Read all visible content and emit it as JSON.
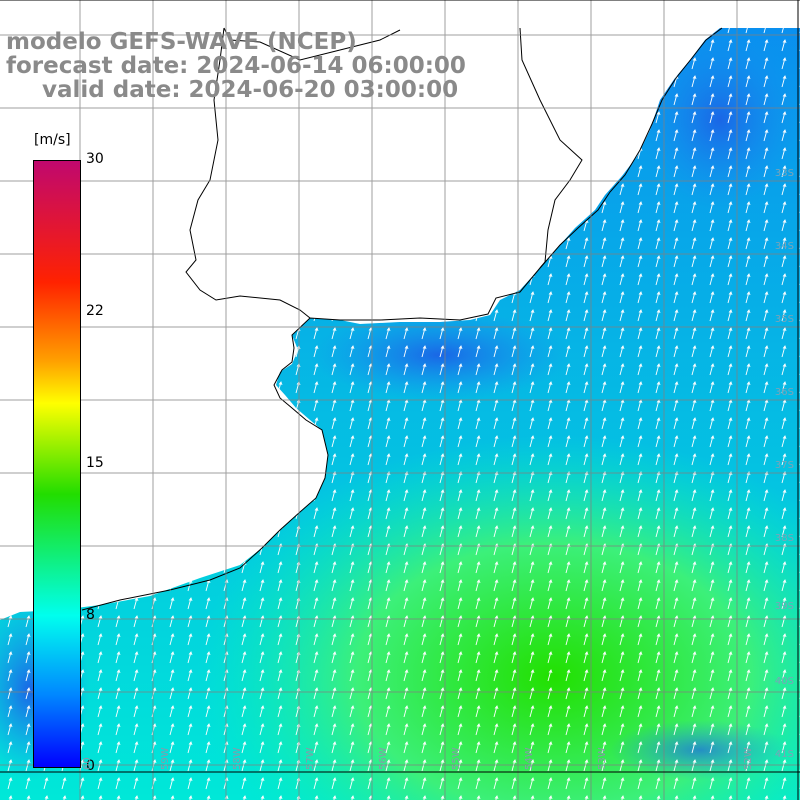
{
  "title": {
    "line1": "modelo GEFS-WAVE (NCEP)",
    "line2": "forecast date: 2024-06-14 06:00:00",
    "line3": "valid date: 2024-06-20 03:00:00"
  },
  "colorbar": {
    "unit": "[m/s]",
    "ticks": [
      "30",
      "22",
      "15",
      "8",
      "0"
    ],
    "colors": [
      "#c0086e",
      "#ff2200",
      "#ffa000",
      "#ffff00",
      "#22dd00",
      "#00ffee",
      "#0088ff",
      "#0000ff"
    ]
  },
  "axes": {
    "lon_labels": [
      "60",
      "59W",
      "58W",
      "57W",
      "56W",
      "55W",
      "54W",
      "53W",
      "52W"
    ],
    "lat_labels": [
      "33S",
      "34S",
      "35S",
      "36S",
      "37S",
      "38S",
      "39S",
      "40S",
      "41S"
    ]
  },
  "colors": {
    "land": "#ffffff",
    "coast": "#000000",
    "grid": "#7f7f7f",
    "arrow": "#ffffff"
  }
}
